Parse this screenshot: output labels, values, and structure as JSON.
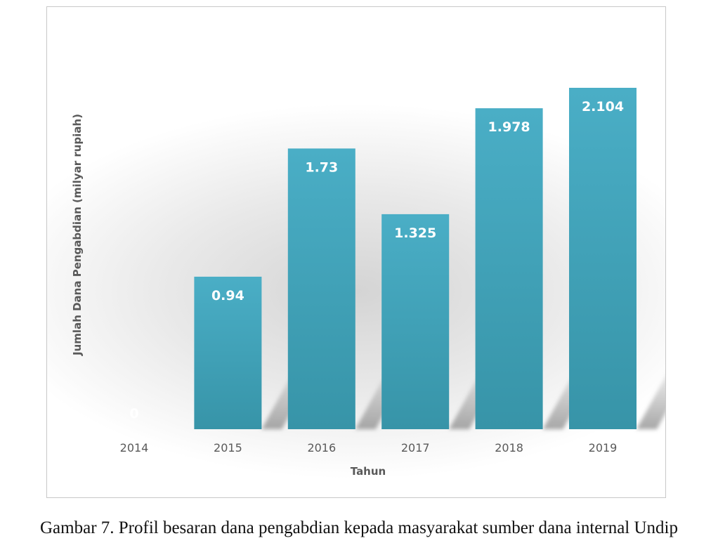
{
  "chart_data": {
    "type": "bar",
    "categories": [
      "2014",
      "2015",
      "2016",
      "2017",
      "2018",
      "2019"
    ],
    "values": [
      0,
      0.94,
      1.73,
      1.325,
      1.978,
      2.104
    ],
    "data_labels": [
      "0",
      "0.94",
      "1.73",
      "1.325",
      "1.978",
      "2.104"
    ],
    "xlabel": "Tahun",
    "ylabel": "Jumlah Dana Pengabdian (milyar rupiah)",
    "ylim": [
      0,
      2.104
    ],
    "grid": false,
    "legend": "none",
    "bar_color_top": "#4aaec6",
    "bar_color_bottom": "#3794a8",
    "axis_text_color": "#595959",
    "data_label_color": "#ffffff"
  },
  "caption": "Gambar 7. Profil besaran dana pengabdian kepada masyarakat sumber dana internal Undip"
}
